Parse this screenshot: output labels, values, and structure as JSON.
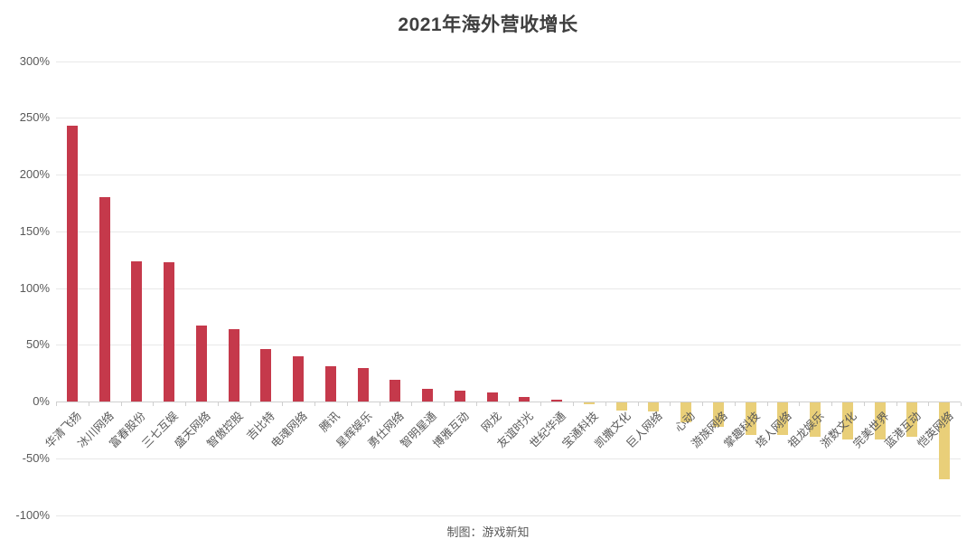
{
  "page": {
    "title": "2021年海外营收增长",
    "footer": "制图：游戏新知"
  },
  "chart_data": {
    "type": "bar",
    "title": "2021年海外营收增长",
    "categories": [
      "华清飞扬",
      "冰川网络",
      "富春股份",
      "三七互娱",
      "盛天网络",
      "智傲控股",
      "吉比特",
      "电魂网络",
      "腾讯",
      "星辉娱乐",
      "勇仕网络",
      "智明星通",
      "博雅互动",
      "网龙",
      "友谊时光",
      "世纪华通",
      "宝通科技",
      "凯撒文化",
      "巨人网络",
      "心动",
      "游族网络",
      "掌趣科技",
      "塔人网络",
      "祖龙娱乐",
      "浙数文化",
      "完美世界",
      "蓝港互动",
      "恺英网络"
    ],
    "values": [
      243,
      180,
      124,
      123,
      67,
      64,
      46,
      40,
      31,
      30,
      19,
      11,
      10,
      8,
      4,
      2,
      -2,
      -8,
      -9,
      -18,
      -22,
      -29,
      -29,
      -31,
      -33,
      -33,
      -31,
      -68
    ],
    "unit": "%",
    "xlabel": "",
    "ylabel": "",
    "ylim": [
      -100,
      300
    ],
    "yticks": [
      300,
      250,
      200,
      150,
      100,
      50,
      0,
      -50,
      -100
    ],
    "ytick_labels": [
      "300%",
      "250%",
      "200%",
      "150%",
      "100%",
      "50%",
      "0%",
      "-50%",
      "-100%"
    ],
    "grid": true,
    "legend_position": "none",
    "x_label_rotation": -45,
    "positive_color": "#c5394b",
    "negative_color": "#e9cf79",
    "grid_color": "#e8e8e8",
    "axis_color": "#cfcfcf",
    "text_color": "#595959",
    "title_color": "#3f3f3f",
    "footer_note": "制图：游戏新知"
  }
}
